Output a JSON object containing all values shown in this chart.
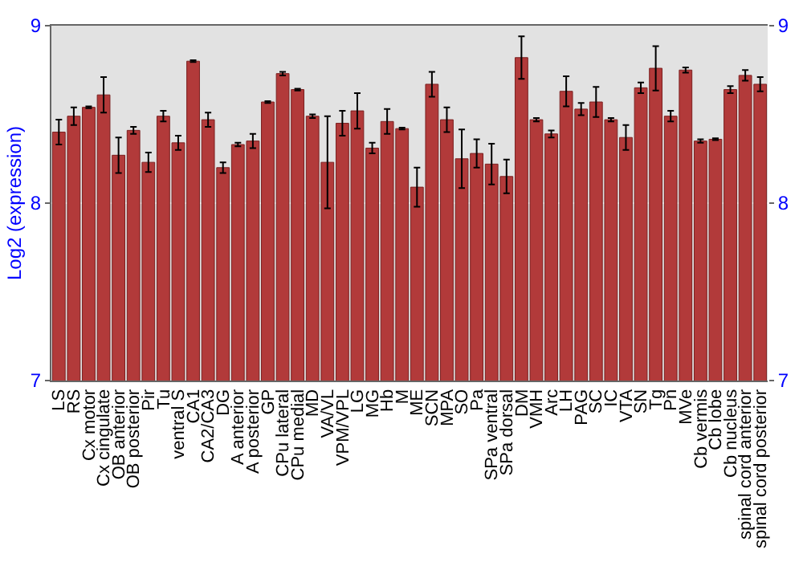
{
  "chart_data": {
    "type": "bar",
    "ylabel": "Log2 (expression)",
    "categories": [
      "LS",
      "RS",
      "Cx motor",
      "Cx cingulate",
      "OB anterior",
      "OB posterior",
      "Pir",
      "Tu",
      "ventral S",
      "CA1",
      "CA2/CA3",
      "DG",
      "A anterior",
      "A posterior",
      "GP",
      "CPu lateral",
      "CPu medial",
      "MD",
      "VA/VL",
      "VPM/VPL",
      "LG",
      "MG",
      "Hb",
      "M",
      "ME",
      "SCN",
      "MPA",
      "SO",
      "Pa",
      "SPa ventral",
      "SPa dorsal",
      "DM",
      "VMH",
      "Arc",
      "LH",
      "PAG",
      "SC",
      "IC",
      "VTA",
      "SN",
      "Tg",
      "Pn",
      "MVe",
      "Cb vermis",
      "Cb lobe",
      "Cb nucleus",
      "spinal cord anterior",
      "spinal cord posterior"
    ],
    "values": [
      8.4,
      8.49,
      8.54,
      8.61,
      8.27,
      8.41,
      8.23,
      8.49,
      8.34,
      8.8,
      8.47,
      8.2,
      8.33,
      8.35,
      8.57,
      8.73,
      8.64,
      8.49,
      8.23,
      8.45,
      8.52,
      8.31,
      8.46,
      8.42,
      8.09,
      8.67,
      8.47,
      8.25,
      8.28,
      8.22,
      8.15,
      8.82,
      8.47,
      8.39,
      8.63,
      8.53,
      8.57,
      8.47,
      8.37,
      8.65,
      8.76,
      8.49,
      8.75,
      8.35,
      8.36,
      8.64,
      8.72,
      8.67
    ],
    "errors": [
      0.07,
      0.05,
      0.005,
      0.1,
      0.1,
      0.02,
      0.055,
      0.03,
      0.04,
      0.005,
      0.04,
      0.03,
      0.01,
      0.04,
      0.005,
      0.01,
      0.005,
      0.01,
      0.26,
      0.07,
      0.1,
      0.03,
      0.07,
      0.005,
      0.11,
      0.07,
      0.07,
      0.165,
      0.08,
      0.115,
      0.095,
      0.12,
      0.01,
      0.02,
      0.085,
      0.035,
      0.085,
      0.01,
      0.07,
      0.03,
      0.125,
      0.03,
      0.015,
      0.01,
      0.005,
      0.02,
      0.03,
      0.04
    ],
    "color": "#b23a3a",
    "ylim": [
      7,
      9
    ],
    "yticks": [
      7,
      8,
      9
    ],
    "y2lim": [
      7,
      9
    ],
    "y2ticks": [
      7,
      8,
      9
    ],
    "grid": "y"
  }
}
